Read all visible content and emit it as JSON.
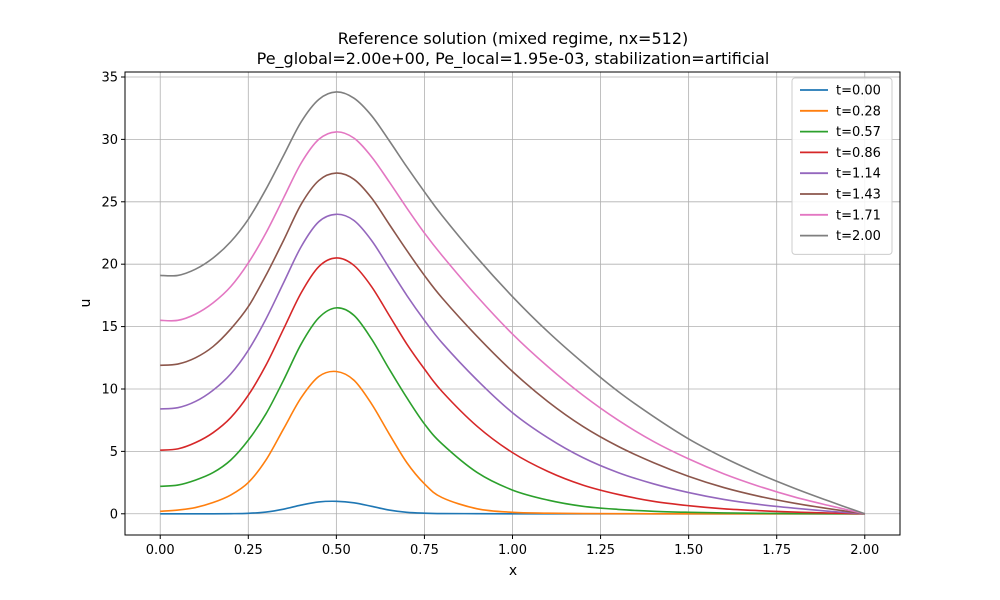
{
  "chart_data": {
    "type": "line",
    "title": [
      "Reference solution (mixed regime, nx=512)",
      "Pe_global=2.00e+00, Pe_local=1.95e-03, stabilization=artificial"
    ],
    "xlabel": "x",
    "ylabel": "u",
    "xlim": [
      -0.1,
      2.1
    ],
    "ylim": [
      -1.7,
      35.4
    ],
    "xticks": [
      0.0,
      0.25,
      0.5,
      0.75,
      1.0,
      1.25,
      1.5,
      1.75,
      2.0
    ],
    "xtick_labels": [
      "0.00",
      "0.25",
      "0.50",
      "0.75",
      "1.00",
      "1.25",
      "1.50",
      "1.75",
      "2.00"
    ],
    "yticks": [
      0,
      5,
      10,
      15,
      20,
      25,
      30,
      35
    ],
    "ytick_labels": [
      "0",
      "5",
      "10",
      "15",
      "20",
      "25",
      "30",
      "35"
    ],
    "grid": true,
    "legend_position": "top-right",
    "x": [
      0.0,
      0.05,
      0.1,
      0.15,
      0.2,
      0.25,
      0.3,
      0.35,
      0.4,
      0.45,
      0.5,
      0.55,
      0.6,
      0.65,
      0.7,
      0.75,
      0.8,
      0.9,
      1.0,
      1.1,
      1.2,
      1.3,
      1.4,
      1.5,
      1.6,
      1.7,
      1.8,
      1.9,
      2.0
    ],
    "series": [
      {
        "name": "t=0.00",
        "color": "#1f77b4",
        "values": [
          0.0,
          0.0,
          0.0,
          0.0,
          0.01,
          0.04,
          0.14,
          0.37,
          0.7,
          0.95,
          1.0,
          0.88,
          0.6,
          0.3,
          0.12,
          0.05,
          0.02,
          0.01,
          0.0,
          0.0,
          0.0,
          0.0,
          0.0,
          0.0,
          0.0,
          0.0,
          0.0,
          0.0,
          0.0
        ]
      },
      {
        "name": "t=0.28",
        "color": "#ff7f0e",
        "values": [
          0.2,
          0.3,
          0.5,
          0.9,
          1.5,
          2.5,
          4.3,
          6.8,
          9.3,
          11.0,
          11.4,
          10.7,
          8.8,
          6.4,
          4.1,
          2.4,
          1.3,
          0.4,
          0.12,
          0.05,
          0.02,
          0.01,
          0.0,
          0.0,
          0.0,
          0.0,
          0.0,
          0.0,
          0.0
        ]
      },
      {
        "name": "t=0.57",
        "color": "#2ca02c",
        "values": [
          2.2,
          2.3,
          2.7,
          3.3,
          4.3,
          5.9,
          8.0,
          10.7,
          13.6,
          15.7,
          16.5,
          15.9,
          14.0,
          11.6,
          9.3,
          7.2,
          5.6,
          3.3,
          1.9,
          1.1,
          0.6,
          0.35,
          0.2,
          0.12,
          0.07,
          0.04,
          0.02,
          0.01,
          0.0
        ]
      },
      {
        "name": "t=0.86",
        "color": "#d62728",
        "values": [
          5.1,
          5.2,
          5.7,
          6.5,
          7.7,
          9.5,
          11.9,
          14.8,
          17.7,
          19.8,
          20.5,
          19.9,
          18.2,
          15.9,
          13.6,
          11.6,
          9.8,
          7.0,
          4.9,
          3.4,
          2.3,
          1.55,
          1.0,
          0.65,
          0.4,
          0.25,
          0.14,
          0.06,
          0.0
        ]
      },
      {
        "name": "t=1.14",
        "color": "#9467bd",
        "values": [
          8.4,
          8.5,
          9.0,
          9.9,
          11.2,
          13.1,
          15.6,
          18.5,
          21.4,
          23.4,
          24.0,
          23.5,
          21.9,
          19.7,
          17.5,
          15.5,
          13.7,
          10.7,
          8.1,
          6.1,
          4.5,
          3.3,
          2.4,
          1.7,
          1.15,
          0.75,
          0.45,
          0.2,
          0.0
        ]
      },
      {
        "name": "t=1.43",
        "color": "#8c564b",
        "values": [
          11.9,
          12.0,
          12.5,
          13.4,
          14.8,
          16.6,
          19.1,
          21.9,
          24.8,
          26.7,
          27.3,
          26.8,
          25.3,
          23.2,
          21.1,
          19.1,
          17.3,
          14.2,
          11.4,
          9.0,
          7.0,
          5.4,
          4.1,
          3.0,
          2.1,
          1.4,
          0.85,
          0.4,
          0.0
        ]
      },
      {
        "name": "t=1.71",
        "color": "#e377c2",
        "values": [
          15.5,
          15.5,
          16.0,
          16.9,
          18.2,
          20.1,
          22.5,
          25.3,
          28.1,
          30.0,
          30.6,
          30.1,
          28.6,
          26.6,
          24.5,
          22.5,
          20.7,
          17.4,
          14.4,
          11.8,
          9.5,
          7.5,
          5.8,
          4.4,
          3.2,
          2.2,
          1.35,
          0.65,
          0.0
        ]
      },
      {
        "name": "t=2.00",
        "color": "#7f7f7f",
        "values": [
          19.1,
          19.1,
          19.6,
          20.5,
          21.8,
          23.6,
          26.0,
          28.7,
          31.4,
          33.2,
          33.8,
          33.3,
          31.9,
          29.9,
          27.8,
          25.8,
          23.9,
          20.5,
          17.4,
          14.6,
          12.1,
          9.8,
          7.8,
          6.0,
          4.5,
          3.2,
          2.05,
          1.0,
          0.0
        ]
      }
    ]
  }
}
